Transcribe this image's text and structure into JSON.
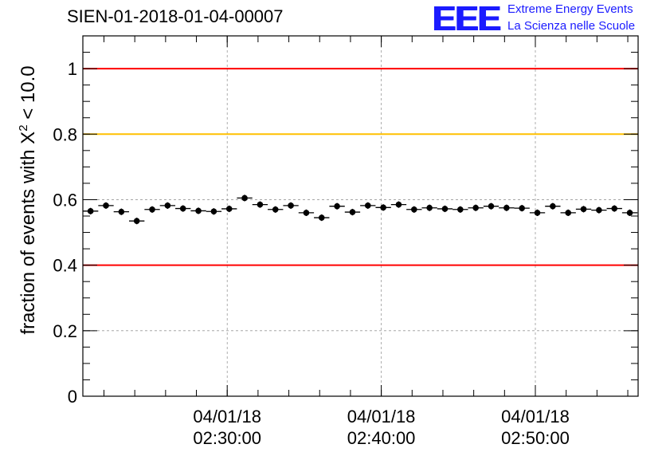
{
  "header": {
    "run_id": "SIEN-01-2018-01-04-00007",
    "logo_mark": "EEE",
    "logo_line1": "Extreme Energy Events",
    "logo_line2": "La Scienza nelle Scuole"
  },
  "colors": {
    "logo": "#1b1bff",
    "limit_line": "#ff0000",
    "warning_line": "#ffc000",
    "markers": "#000000",
    "grid": "#999999"
  },
  "chart_data": {
    "type": "scatter",
    "title": "SIEN-01-2018-01-04-00007",
    "ylabel": {
      "prefix": "fraction of events with ",
      "symbol": "X",
      "exponent": "2",
      "suffix": " < 10.0"
    },
    "xlabel": "",
    "x_unit": "minutes after 02:00:00 on 04/01/18",
    "xlim": [
      20.63,
      56.67
    ],
    "ylim": [
      0,
      1.1
    ],
    "grid": true,
    "yticks": [
      {
        "value": 0,
        "label": "0"
      },
      {
        "value": 0.2,
        "label": "0.2"
      },
      {
        "value": 0.4,
        "label": "0.4"
      },
      {
        "value": 0.6,
        "label": "0.6"
      },
      {
        "value": 0.8,
        "label": "0.8"
      },
      {
        "value": 1,
        "label": "1"
      }
    ],
    "xticks": [
      {
        "value": 30,
        "date": "04/01/18",
        "time": "02:30:00"
      },
      {
        "value": 40,
        "date": "04/01/18",
        "time": "02:40:00"
      },
      {
        "value": 50,
        "date": "04/01/18",
        "time": "02:50:00"
      }
    ],
    "reference_lines": [
      {
        "name": "upper-limit",
        "y": 1.0,
        "color": "#ff0000"
      },
      {
        "name": "warning-level",
        "y": 0.8,
        "color": "#ffc000"
      },
      {
        "name": "lower-limit",
        "y": 0.4,
        "color": "#ff0000"
      }
    ],
    "bin_width": 1.0,
    "y_error": 0.01,
    "x": [
      21.13,
      22.13,
      23.13,
      24.13,
      25.13,
      26.13,
      27.13,
      28.13,
      29.13,
      30.13,
      31.13,
      32.13,
      33.13,
      34.13,
      35.13,
      36.13,
      37.13,
      38.13,
      39.13,
      40.13,
      41.13,
      42.13,
      43.13,
      44.13,
      45.13,
      46.13,
      47.13,
      48.13,
      49.13,
      50.13,
      51.13,
      52.13,
      53.13,
      54.13,
      55.13,
      56.13
    ],
    "y": [
      0.565,
      0.582,
      0.563,
      0.535,
      0.57,
      0.582,
      0.573,
      0.566,
      0.564,
      0.572,
      0.605,
      0.585,
      0.57,
      0.582,
      0.56,
      0.545,
      0.58,
      0.562,
      0.582,
      0.576,
      0.585,
      0.57,
      0.575,
      0.572,
      0.57,
      0.575,
      0.58,
      0.575,
      0.574,
      0.56,
      0.58,
      0.56,
      0.571,
      0.568,
      0.573,
      0.56
    ]
  }
}
